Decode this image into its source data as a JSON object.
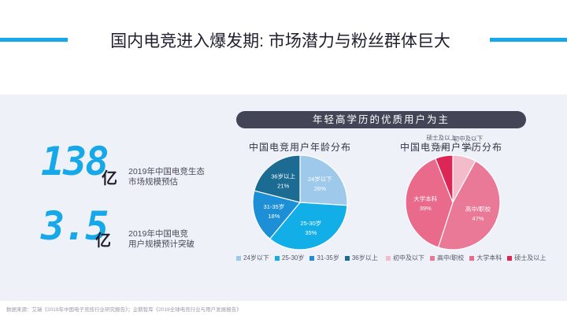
{
  "page": {
    "title": "国内电竞进入爆发期: 市场潜力与粉丝群体巨大",
    "accent_color": "#16a8e8"
  },
  "stats": [
    {
      "value": "138",
      "unit": "亿",
      "desc": "2019年中国电竞生态\n市场规模预估"
    },
    {
      "value": "3.5",
      "unit": "亿",
      "desc": "2019年中国电竞\n用户规模预计突破"
    }
  ],
  "banner": "年轻高学历的优质用户为主",
  "chart_data": [
    {
      "type": "pie",
      "title": "中国电竞用户年龄分布",
      "categories": [
        "24岁以下",
        "25-30岁",
        "31-35岁",
        "36岁以上"
      ],
      "values": [
        26,
        35,
        18,
        21
      ],
      "labels": [
        "26%",
        "35%",
        "18%",
        "21%"
      ],
      "colors": [
        "#9fc9ea",
        "#12aee8",
        "#1c8fd6",
        "#1b6b93"
      ],
      "label_colors": [
        "#ffffff",
        "#ffffff",
        "#ffffff",
        "#ffffff"
      ],
      "start": "top",
      "legend": "bottom"
    },
    {
      "type": "pie",
      "title": "中国电竞用户学历分布",
      "categories": [
        "初中及以下",
        "高中/职校",
        "大学本科",
        "硕士及以上"
      ],
      "values": [
        8,
        47,
        39,
        6
      ],
      "labels": [
        "8%",
        "47%",
        "39%",
        "6%"
      ],
      "colors": [
        "#f4bccb",
        "#ea7897",
        "#e96a8b",
        "#dc2656"
      ],
      "label_colors": [
        "#555566",
        "#ffffff",
        "#ffffff",
        "#555566"
      ],
      "start": "top",
      "legend": "bottom"
    }
  ],
  "source": "数据来源：艾瑞《2019年中国电子竞技行业研究报告》；企鹅智库《2019全球电竞行业与用户发展报告》"
}
